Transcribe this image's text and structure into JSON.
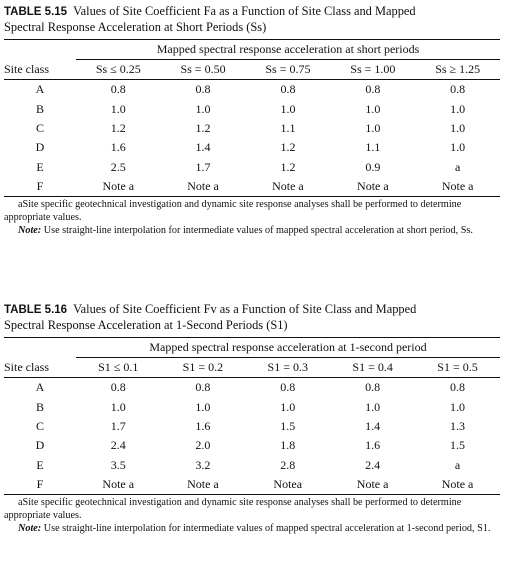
{
  "table1": {
    "label": "TABLE 5.15",
    "title_line1": "Values of Site Coefficient Fa as a Function of Site Class and Mapped",
    "title_line2": "Spectral Response Acceleration at Short Periods (Ss)",
    "group_header": "Mapped spectral response acceleration at short periods",
    "col_site": "Site class",
    "columns": [
      "Ss ≤ 0.25",
      "Ss = 0.50",
      "Ss = 0.75",
      "Ss = 1.00",
      "Ss ≥ 1.25"
    ],
    "rows": [
      {
        "site": "A",
        "values": [
          "0.8",
          "0.8",
          "0.8",
          "0.8",
          "0.8"
        ]
      },
      {
        "site": "B",
        "values": [
          "1.0",
          "1.0",
          "1.0",
          "1.0",
          "1.0"
        ]
      },
      {
        "site": "C",
        "values": [
          "1.2",
          "1.2",
          "1.1",
          "1.0",
          "1.0"
        ]
      },
      {
        "site": "D",
        "values": [
          "1.6",
          "1.4",
          "1.2",
          "1.1",
          "1.0"
        ]
      },
      {
        "site": "E",
        "values": [
          "2.5",
          "1.7",
          "1.2",
          "0.9",
          "a"
        ]
      },
      {
        "site": "F",
        "values": [
          "Note a",
          "Note a",
          "Note a",
          "Note a",
          "Note a"
        ]
      }
    ],
    "footnote_a": "aSite specific geotechnical investigation and dynamic site response analyses shall be performed to determine appropriate values.",
    "note_label": "Note:",
    "note_text": "Use straight-line interpolation for intermediate values of mapped spectral acceleration at short period, Ss."
  },
  "table2": {
    "label": "TABLE 5.16",
    "title_line1": "Values of Site Coefficient Fv as a Function of Site Class and Mapped",
    "title_line2": "Spectral Response Acceleration at 1-Second Periods (S1)",
    "group_header": "Mapped spectral response acceleration at 1-second period",
    "col_site": "Site class",
    "columns": [
      "S1 ≤ 0.1",
      "S1 = 0.2",
      "S1 = 0.3",
      "S1 = 0.4",
      "S1 = 0.5"
    ],
    "rows": [
      {
        "site": "A",
        "values": [
          "0.8",
          "0.8",
          "0.8",
          "0.8",
          "0.8"
        ]
      },
      {
        "site": "B",
        "values": [
          "1.0",
          "1.0",
          "1.0",
          "1.0",
          "1.0"
        ]
      },
      {
        "site": "C",
        "values": [
          "1.7",
          "1.6",
          "1.5",
          "1.4",
          "1.3"
        ]
      },
      {
        "site": "D",
        "values": [
          "2.4",
          "2.0",
          "1.8",
          "1.6",
          "1.5"
        ]
      },
      {
        "site": "E",
        "values": [
          "3.5",
          "3.2",
          "2.8",
          "2.4",
          "a"
        ]
      },
      {
        "site": "F",
        "values": [
          "Note a",
          "Note a",
          "Notea",
          "Note a",
          "Note a"
        ]
      }
    ],
    "footnote_a": "aSite specific geotechnical investigation and dynamic site response analyses shall be performed to determine appropriate values.",
    "note_label": "Note:",
    "note_text": "Use straight-line interpolation for intermediate values of mapped spectral acceleration at 1-second period, S1."
  }
}
